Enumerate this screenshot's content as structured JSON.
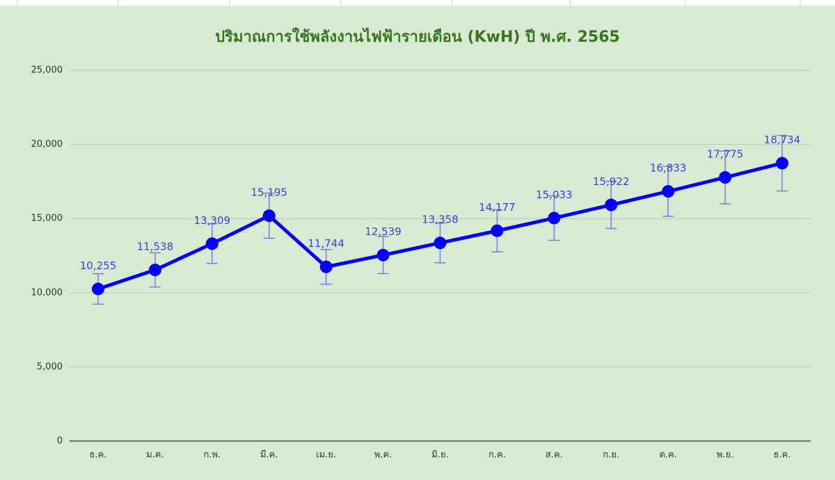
{
  "chart_data": {
    "type": "line",
    "title": "ปริมาณการใช้พลังงานไฟฟ้ารายเดือน (KwH) ปี พ.ศ. 2565",
    "categories": [
      "ธ.ค.",
      "ม.ค.",
      "ก.พ.",
      "มี.ค.",
      "เม.ย.",
      "พ.ค.",
      "มิ.ย.",
      "ก.ค.",
      "ส.ค.",
      "ก.ย.",
      "ต.ค.",
      "พ.ย.",
      "ธ.ค."
    ],
    "values": [
      10255,
      11538,
      13309,
      15195,
      11744,
      12539,
      13358,
      14177,
      15033,
      15922,
      16833,
      17775,
      18734
    ],
    "value_labels": [
      "10,255",
      "11,538",
      "13,309",
      "15,195",
      "11,744",
      "12,539",
      "13,358",
      "14,177",
      "15,033",
      "15,922",
      "16,833",
      "17,775",
      "18,734"
    ],
    "errors": [
      1026,
      1154,
      1331,
      1520,
      1174,
      1254,
      1336,
      1418,
      1503,
      1592,
      1683,
      1778,
      1873
    ],
    "color": "#0000ff",
    "error_color": "#7b7bd9",
    "ylim": [
      0,
      25000
    ],
    "yticks": [
      0,
      {
        "value": 5000,
        "label": "5,000"
      },
      {
        "value": 10000,
        "label": "10,000"
      },
      {
        "value": 15000,
        "label": "15,000"
      },
      {
        "value": 20000,
        "label": "20,000"
      },
      {
        "value": 25000,
        "label": "25,000"
      }
    ],
    "grid": true
  }
}
